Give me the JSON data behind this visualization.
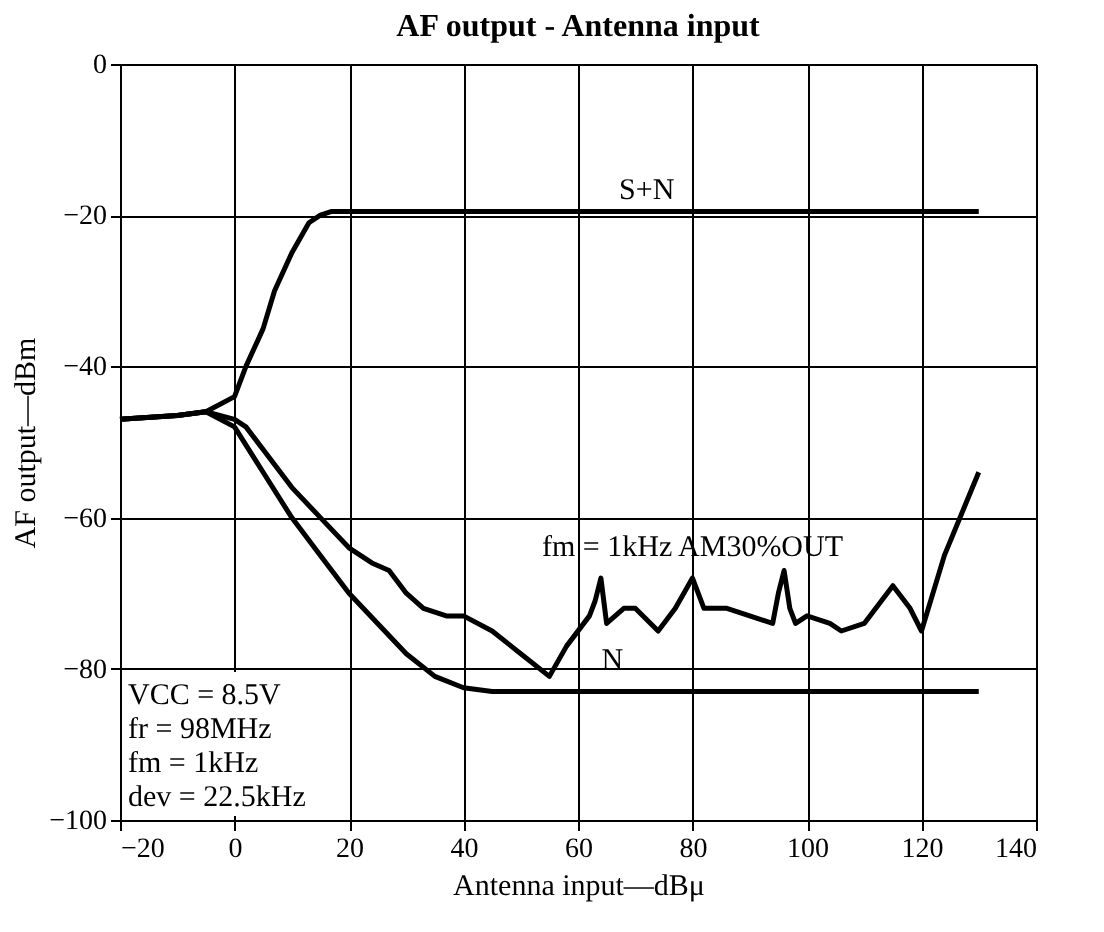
{
  "chart_data": {
    "type": "line",
    "title": "AF output - Antenna input",
    "xlabel": "Antenna input—dBμ",
    "ylabel": "AF output—dBm",
    "xlim": [
      -20,
      140
    ],
    "xticks": [
      -20,
      0,
      20,
      40,
      60,
      80,
      100,
      120,
      140
    ],
    "ylim": [
      -100,
      0
    ],
    "yticks": [
      -100,
      -80,
      -60,
      -40,
      -20,
      0
    ],
    "grid": true,
    "marker": "none",
    "line_style": "solid",
    "series": [
      {
        "color": "#000000",
        "x": [
          -20,
          -10,
          -5,
          0,
          2,
          5,
          7,
          10,
          13,
          15,
          17,
          20,
          40,
          60,
          80,
          100,
          130
        ],
        "values": [
          -47,
          -46.5,
          -46,
          -44,
          -40,
          -35,
          -30,
          -25,
          -21,
          -20,
          -19.5,
          -19.5,
          -19.5,
          -19.5,
          -19.5,
          -19.5,
          -19.5
        ]
      },
      {
        "color": "#000000",
        "x": [
          -20,
          -10,
          -5,
          0,
          5,
          10,
          15,
          20,
          25,
          30,
          35,
          40,
          45,
          50,
          60,
          80,
          100,
          130
        ],
        "values": [
          -47,
          -46.5,
          -46,
          -48,
          -54,
          -60,
          -65,
          -70,
          -74,
          -78,
          -81,
          -82.5,
          -83,
          -83,
          -83,
          -83,
          -83,
          -83
        ]
      },
      {
        "color": "#000000",
        "x": [
          -20,
          -10,
          -5,
          0,
          2,
          5,
          10,
          15,
          20,
          24,
          27,
          30,
          33,
          37,
          40,
          45,
          50,
          55,
          58,
          62,
          63,
          64,
          65,
          68,
          70,
          74,
          77,
          80,
          82,
          86,
          90,
          94,
          95,
          96,
          97,
          98,
          100,
          104,
          106,
          110,
          115,
          118,
          120,
          124,
          130
        ],
        "values": [
          -47,
          -46.5,
          -46,
          -47,
          -48,
          -51,
          -56,
          -60,
          -64,
          -66,
          -67,
          -70,
          -72,
          -73,
          -73,
          -75,
          -78,
          -81,
          -77,
          -73,
          -71,
          -68,
          -74,
          -72,
          -72,
          -75,
          -72,
          -68,
          -72,
          -72,
          -73,
          -74,
          -70,
          -67,
          -72,
          -74,
          -73,
          -74,
          -75,
          -74,
          -69,
          -72,
          -75,
          -65,
          -54
        ]
      }
    ],
    "annotations": [
      {
        "text": "S+N",
        "x": 72,
        "y": -19.5
      },
      {
        "text": "N",
        "x": 66,
        "y": -83
      },
      {
        "text": "fm = 1kHz  AM30%OUT",
        "x": 80,
        "y": -68
      },
      "VCC = 8.5V",
      "fr = 98MHz",
      "fm = 1kHz",
      "dev = 22.5kHz"
    ]
  }
}
